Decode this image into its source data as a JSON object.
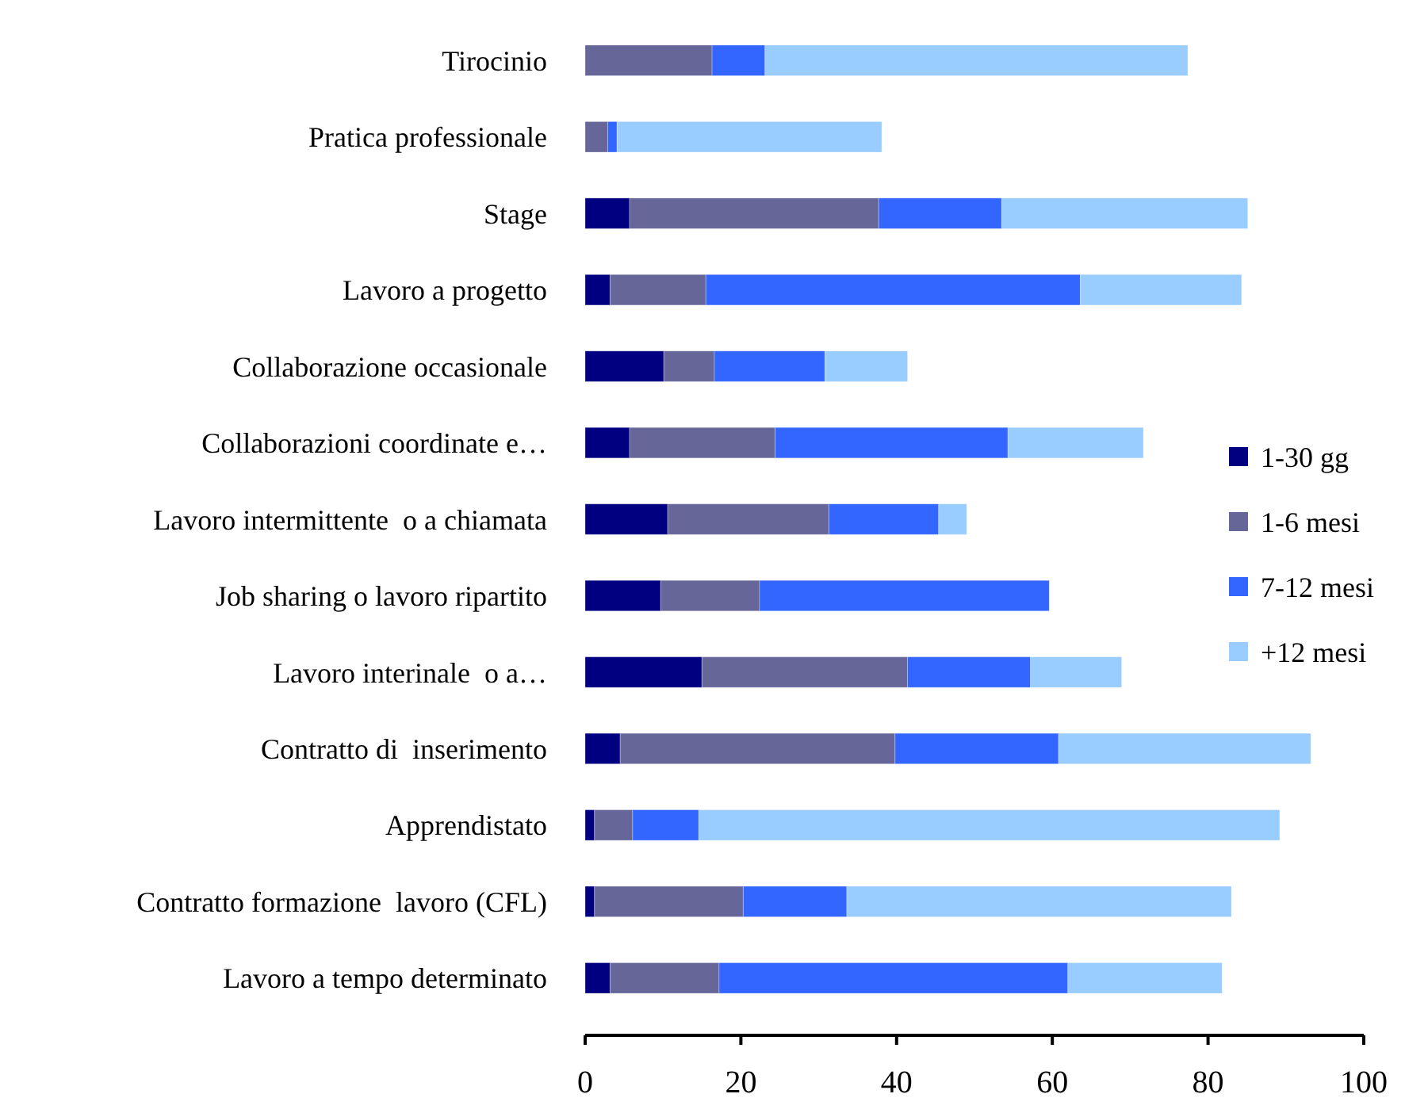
{
  "chart_data": {
    "type": "bar",
    "orientation": "horizontal",
    "stacked": true,
    "categories": [
      "Tirocinio",
      "Pratica professionale",
      "Stage",
      "Lavoro a progetto",
      "Collaborazione occasionale",
      "Collaborazioni coordinate e…",
      "Lavoro intermittente  o a chiamata",
      "Job sharing o lavoro ripartito",
      "Lavoro interinale  o a…",
      "Contratto di  inserimento",
      "Apprendistato",
      "Contratto formazione  lavoro (CFL)",
      "Lavoro a tempo determinato"
    ],
    "series": [
      {
        "name": "1-30 gg",
        "color": "#000080",
        "values": [
          0,
          0,
          5.7,
          3.2,
          10.1,
          5.7,
          10.6,
          9.7,
          15.0,
          4.5,
          1.2,
          1.2,
          3.2
        ]
      },
      {
        "name": "1-6 mesi",
        "color": "#666699",
        "values": [
          16.3,
          2.9,
          32.0,
          12.3,
          6.5,
          18.7,
          20.7,
          12.7,
          26.4,
          35.3,
          4.9,
          19.1,
          14.0
        ]
      },
      {
        "name": "7-12 mesi",
        "color": "#3366ff",
        "values": [
          6.8,
          1.2,
          15.8,
          48.1,
          14.2,
          29.9,
          14.1,
          37.2,
          15.8,
          21.0,
          8.5,
          13.3,
          44.8
        ]
      },
      {
        "name": "+12 mesi",
        "color": "#99ccff",
        "values": [
          54.3,
          34.0,
          31.6,
          20.7,
          10.6,
          17.4,
          3.6,
          0,
          11.7,
          32.4,
          74.6,
          49.4,
          19.8
        ]
      }
    ],
    "xlim": [
      0,
      100
    ],
    "xticks": [
      0,
      20,
      40,
      60,
      80,
      100
    ],
    "legend": "right",
    "grid": false
  }
}
